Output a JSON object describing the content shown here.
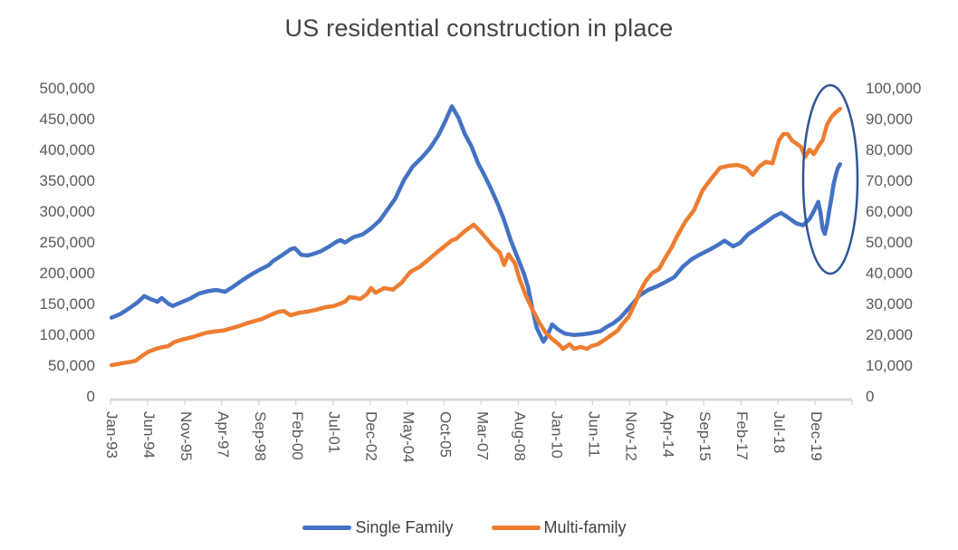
{
  "title": "US residential construction in place",
  "legend": {
    "items": [
      {
        "label": "Single Family",
        "color": "#4472C4"
      },
      {
        "label": "Multi-family",
        "color": "#ED7D31"
      }
    ]
  },
  "chart_data": {
    "type": "line",
    "title": "US residential construction in place",
    "grid": false,
    "legend_position": "bottom",
    "x_axis": {
      "unit": "months since Jan-93",
      "total_months": 340,
      "months_per_tick": 17,
      "tick_labels": [
        "Jan-93",
        "Jun-94",
        "Nov-95",
        "Apr-97",
        "Sep-98",
        "Feb-00",
        "Jul-01",
        "Dec-02",
        "May-04",
        "Oct-05",
        "Mar-07",
        "Aug-08",
        "Jan-10",
        "Jun-11",
        "Nov-12",
        "Apr-14",
        "Sep-15",
        "Feb-17",
        "Jul-18",
        "Dec-19"
      ],
      "label_rotation_deg": 90
    },
    "left_axis": {
      "min": 0,
      "max": 500000,
      "step": 50000,
      "tick_labels": [
        "500,000",
        "450,000",
        "400,000",
        "350,000",
        "300,000",
        "250,000",
        "200,000",
        "150,000",
        "100,000",
        "50,000",
        "0"
      ]
    },
    "right_axis": {
      "min": 0,
      "max": 100000,
      "step": 10000,
      "tick_labels": [
        "100,000",
        "90,000",
        "80,000",
        "70,000",
        "60,000",
        "50,000",
        "40,000",
        "30,000",
        "20,000",
        "10,000",
        "0"
      ]
    },
    "axis_color": "#D8D8D8",
    "tick_text_color": "#595959",
    "series": [
      {
        "name": "Single Family",
        "color": "#4472C4",
        "axis": "left",
        "points": [
          [
            0,
            127000
          ],
          [
            4,
            133000
          ],
          [
            8,
            142000
          ],
          [
            12,
            152000
          ],
          [
            15,
            162000
          ],
          [
            18,
            157000
          ],
          [
            21,
            153000
          ],
          [
            23,
            159000
          ],
          [
            26,
            150000
          ],
          [
            28,
            146000
          ],
          [
            32,
            152000
          ],
          [
            36,
            158000
          ],
          [
            40,
            166000
          ],
          [
            44,
            170000
          ],
          [
            48,
            172000
          ],
          [
            52,
            169000
          ],
          [
            56,
            178000
          ],
          [
            60,
            188000
          ],
          [
            64,
            197000
          ],
          [
            68,
            205000
          ],
          [
            72,
            212000
          ],
          [
            74,
            219000
          ],
          [
            78,
            228000
          ],
          [
            82,
            238000
          ],
          [
            84,
            240000
          ],
          [
            87,
            229000
          ],
          [
            90,
            228000
          ],
          [
            93,
            231000
          ],
          [
            96,
            235000
          ],
          [
            100,
            243000
          ],
          [
            103,
            250000
          ],
          [
            105,
            253000
          ],
          [
            107,
            249000
          ],
          [
            111,
            258000
          ],
          [
            115,
            262000
          ],
          [
            119,
            272000
          ],
          [
            123,
            285000
          ],
          [
            126,
            300000
          ],
          [
            130,
            320000
          ],
          [
            134,
            350000
          ],
          [
            138,
            372000
          ],
          [
            142,
            386000
          ],
          [
            146,
            402000
          ],
          [
            150,
            424000
          ],
          [
            153,
            446000
          ],
          [
            156,
            470000
          ],
          [
            159,
            452000
          ],
          [
            162,
            425000
          ],
          [
            165,
            405000
          ],
          [
            168,
            378000
          ],
          [
            171,
            358000
          ],
          [
            174,
            336000
          ],
          [
            177,
            312000
          ],
          [
            180,
            285000
          ],
          [
            183,
            253000
          ],
          [
            186,
            226000
          ],
          [
            189,
            199000
          ],
          [
            191,
            176000
          ],
          [
            193,
            140000
          ],
          [
            195,
            110000
          ],
          [
            198,
            88000
          ],
          [
            200,
            100000
          ],
          [
            202,
            116000
          ],
          [
            205,
            107000
          ],
          [
            208,
            101000
          ],
          [
            212,
            99000
          ],
          [
            216,
            100000
          ],
          [
            220,
            102000
          ],
          [
            224,
            105000
          ],
          [
            227,
            112000
          ],
          [
            230,
            118000
          ],
          [
            233,
            126000
          ],
          [
            236,
            138000
          ],
          [
            239,
            150000
          ],
          [
            242,
            163000
          ],
          [
            246,
            172000
          ],
          [
            250,
            178000
          ],
          [
            254,
            185000
          ],
          [
            258,
            193000
          ],
          [
            262,
            210000
          ],
          [
            266,
            222000
          ],
          [
            270,
            230000
          ],
          [
            274,
            237000
          ],
          [
            278,
            245000
          ],
          [
            281,
            252000
          ],
          [
            285,
            243000
          ],
          [
            288,
            248000
          ],
          [
            292,
            263000
          ],
          [
            296,
            272000
          ],
          [
            300,
            282000
          ],
          [
            304,
            292000
          ],
          [
            307,
            297000
          ],
          [
            310,
            290000
          ],
          [
            314,
            280000
          ],
          [
            317,
            277000
          ],
          [
            320,
            287000
          ],
          [
            322,
            300000
          ],
          [
            324,
            315000
          ],
          [
            325,
            298000
          ],
          [
            326,
            272000
          ],
          [
            327,
            263000
          ],
          [
            328,
            278000
          ],
          [
            329,
            300000
          ],
          [
            330,
            320000
          ],
          [
            331,
            343000
          ],
          [
            332,
            358000
          ],
          [
            333,
            370000
          ],
          [
            334,
            376000
          ]
        ]
      },
      {
        "name": "Multi-family",
        "color": "#ED7D31",
        "axis": "right",
        "points": [
          [
            0,
            10000
          ],
          [
            4,
            10500
          ],
          [
            8,
            11000
          ],
          [
            11,
            11400
          ],
          [
            14,
            13000
          ],
          [
            17,
            14400
          ],
          [
            20,
            15200
          ],
          [
            23,
            15800
          ],
          [
            26,
            16200
          ],
          [
            29,
            17600
          ],
          [
            33,
            18400
          ],
          [
            37,
            19100
          ],
          [
            41,
            20000
          ],
          [
            44,
            20600
          ],
          [
            48,
            21000
          ],
          [
            51,
            21200
          ],
          [
            55,
            22000
          ],
          [
            58,
            22600
          ],
          [
            62,
            23600
          ],
          [
            66,
            24400
          ],
          [
            69,
            25000
          ],
          [
            73,
            26300
          ],
          [
            76,
            27200
          ],
          [
            79,
            27600
          ],
          [
            82,
            26200
          ],
          [
            86,
            27000
          ],
          [
            90,
            27400
          ],
          [
            94,
            28000
          ],
          [
            98,
            28800
          ],
          [
            102,
            29200
          ],
          [
            105,
            30000
          ],
          [
            107,
            30600
          ],
          [
            109,
            32100
          ],
          [
            112,
            31800
          ],
          [
            114,
            31500
          ],
          [
            117,
            33000
          ],
          [
            119,
            35000
          ],
          [
            121,
            33500
          ],
          [
            125,
            35000
          ],
          [
            129,
            34500
          ],
          [
            133,
            36800
          ],
          [
            137,
            40300
          ],
          [
            141,
            41800
          ],
          [
            145,
            44100
          ],
          [
            149,
            46500
          ],
          [
            153,
            48800
          ],
          [
            156,
            50500
          ],
          [
            158,
            51000
          ],
          [
            162,
            53500
          ],
          [
            166,
            55600
          ],
          [
            169,
            53500
          ],
          [
            172,
            51000
          ],
          [
            175,
            48500
          ],
          [
            178,
            46500
          ],
          [
            180,
            42500
          ],
          [
            182,
            46000
          ],
          [
            185,
            43000
          ],
          [
            187,
            38000
          ],
          [
            190,
            32500
          ],
          [
            193,
            28000
          ],
          [
            196,
            24000
          ],
          [
            199,
            20500
          ],
          [
            202,
            18500
          ],
          [
            205,
            16800
          ],
          [
            207,
            15300
          ],
          [
            210,
            16800
          ],
          [
            212,
            15300
          ],
          [
            215,
            15900
          ],
          [
            218,
            15300
          ],
          [
            220,
            16200
          ],
          [
            223,
            16800
          ],
          [
            226,
            18200
          ],
          [
            229,
            19700
          ],
          [
            232,
            21200
          ],
          [
            234,
            23200
          ],
          [
            237,
            25600
          ],
          [
            240,
            30000
          ],
          [
            242,
            33500
          ],
          [
            245,
            37400
          ],
          [
            248,
            40000
          ],
          [
            251,
            41200
          ],
          [
            254,
            45000
          ],
          [
            257,
            48500
          ],
          [
            259,
            51500
          ],
          [
            263,
            56500
          ],
          [
            267,
            60300
          ],
          [
            271,
            66800
          ],
          [
            275,
            70600
          ],
          [
            279,
            74100
          ],
          [
            283,
            74700
          ],
          [
            287,
            75000
          ],
          [
            291,
            74000
          ],
          [
            294,
            71800
          ],
          [
            297,
            74500
          ],
          [
            300,
            76000
          ],
          [
            303,
            75500
          ],
          [
            306,
            83000
          ],
          [
            308,
            85000
          ],
          [
            310,
            85000
          ],
          [
            312,
            82900
          ],
          [
            316,
            80900
          ],
          [
            318,
            77600
          ],
          [
            320,
            80000
          ],
          [
            322,
            78500
          ],
          [
            324,
            81000
          ],
          [
            326,
            83000
          ],
          [
            328,
            88000
          ],
          [
            330,
            90500
          ],
          [
            332,
            92000
          ],
          [
            334,
            93200
          ]
        ]
      }
    ],
    "annotation": {
      "shape": "ellipse",
      "x": 917,
      "y": 198,
      "rx": 30,
      "ry": 104,
      "color": "#2F5597"
    }
  }
}
